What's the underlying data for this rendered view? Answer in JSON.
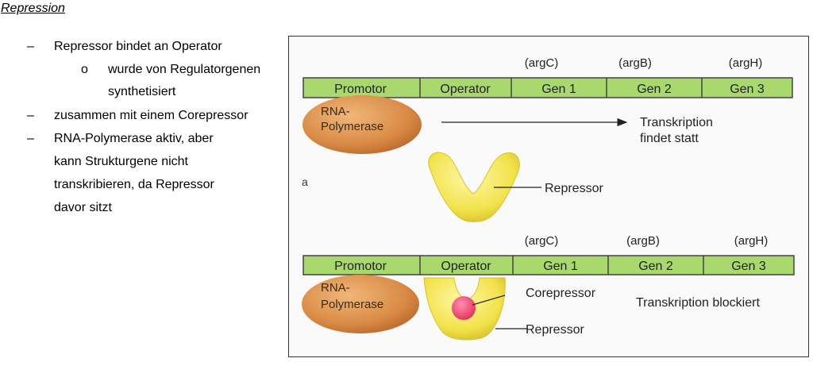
{
  "heading": "Repression",
  "bullets": {
    "b1": "Repressor bindet an Operator",
    "b1_sub_line1": "wurde von Regulatorgenen",
    "b1_sub_line2": "synthetisiert",
    "b2": "zusammen mit einem Corepressor",
    "b3_line1": "RNA-Polymerase aktiv, aber",
    "b3_line2": "kann Strukturgene nicht",
    "b3_line3": "transkribieren, da Repressor",
    "b3_line4": "davor sitzt"
  },
  "bullet_symbols": {
    "dash": "–",
    "circle": "o"
  },
  "figure": {
    "panel_label": "a",
    "top": {
      "gene_labels": [
        "(argC)",
        "(argB)",
        "(argH)"
      ],
      "segments": [
        "Promotor",
        "Operator",
        "Gen 1",
        "Gen 2",
        "Gen 3"
      ],
      "polymerase": [
        "RNA-",
        "Polymerase"
      ],
      "result": [
        "Transkription",
        "findet statt"
      ],
      "repressor": "Repressor"
    },
    "bottom": {
      "gene_labels": [
        "(argC)",
        "(argB)",
        "(argH)"
      ],
      "segments": [
        "Promotor",
        "Operator",
        "Gen 1",
        "Gen 2",
        "Gen 3"
      ],
      "polymerase": [
        "RNA-",
        "Polymerase"
      ],
      "corepressor": "Corepressor",
      "repressor": "Repressor",
      "result": "Transkription blockiert"
    }
  },
  "colors": {
    "dna_bar": "#a9d86e",
    "polymerase": "#d98a45",
    "repressor": "#f2e24a",
    "corepressor": "#e0305a"
  }
}
